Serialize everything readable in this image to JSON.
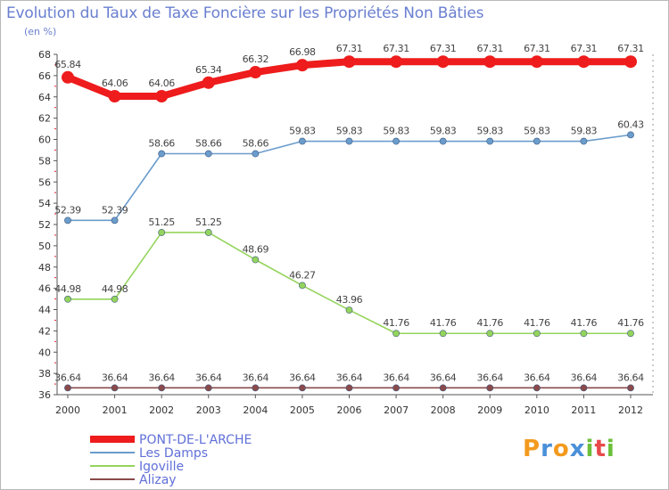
{
  "title": "Evolution du Taux de Taxe Foncière sur les Propriétés Non Bâties",
  "unit_label": "(en %)",
  "logo": {
    "text": "Proxiti",
    "colors": [
      "#f39a1e",
      "#4a90d9",
      "#f39a1e",
      "#4a90d9",
      "#6cbf3a",
      "#e84a4a",
      "#6cbf3a"
    ]
  },
  "chart_data": {
    "type": "line",
    "x": [
      "2000",
      "2001",
      "2002",
      "2003",
      "2004",
      "2005",
      "2006",
      "2007",
      "2008",
      "2009",
      "2010",
      "2011",
      "2012"
    ],
    "ylim": [
      36,
      68
    ],
    "yticks": [
      36,
      38,
      40,
      42,
      44,
      46,
      48,
      50,
      52,
      54,
      56,
      58,
      60,
      62,
      64,
      66,
      68
    ],
    "grid": false,
    "legend_position": "bottom-left",
    "series": [
      {
        "name": "PONT-DE-L'ARCHE",
        "color": "#ee1c1c",
        "values": [
          65.84,
          64.06,
          64.06,
          65.34,
          66.32,
          66.98,
          67.31,
          67.31,
          67.31,
          67.31,
          67.31,
          67.31,
          67.31
        ],
        "labels": [
          "65.84",
          "64.06",
          "64.06",
          "65.34",
          "66.32",
          "66.98",
          "67.31",
          "67.31",
          "67.31",
          "67.31",
          "67.31",
          "67.31",
          "67.31"
        ]
      },
      {
        "name": "Les Damps",
        "color": "#6a9ccc",
        "values": [
          52.39,
          52.39,
          58.66,
          58.66,
          58.66,
          59.83,
          59.83,
          59.83,
          59.83,
          59.83,
          59.83,
          59.83,
          60.43
        ],
        "labels": [
          "52.39",
          "52.39",
          "58.66",
          "58.66",
          "58.66",
          "59.83",
          "59.83",
          "59.83",
          "59.83",
          "59.83",
          "59.83",
          "59.83",
          "60.43"
        ]
      },
      {
        "name": "Igoville",
        "color": "#94d45c",
        "values": [
          44.98,
          44.98,
          51.25,
          51.25,
          48.69,
          46.27,
          43.96,
          41.76,
          41.76,
          41.76,
          41.76,
          41.76,
          41.76
        ],
        "labels": [
          "44.98",
          "44.98",
          "51.25",
          "51.25",
          "48.69",
          "46.27",
          "43.96",
          "41.76",
          "41.76",
          "41.76",
          "41.76",
          "41.76",
          "41.76"
        ]
      },
      {
        "name": "Alizay",
        "color": "#8a4a4a",
        "values": [
          36.64,
          36.64,
          36.64,
          36.64,
          36.64,
          36.64,
          36.64,
          36.64,
          36.64,
          36.64,
          36.64,
          36.64,
          36.64
        ],
        "labels": [
          "36.64",
          "36.64",
          "36.64",
          "36.64",
          "36.64",
          "36.64",
          "36.64",
          "36.64",
          "36.64",
          "36.64",
          "36.64",
          "36.64",
          "36.64"
        ]
      }
    ]
  }
}
